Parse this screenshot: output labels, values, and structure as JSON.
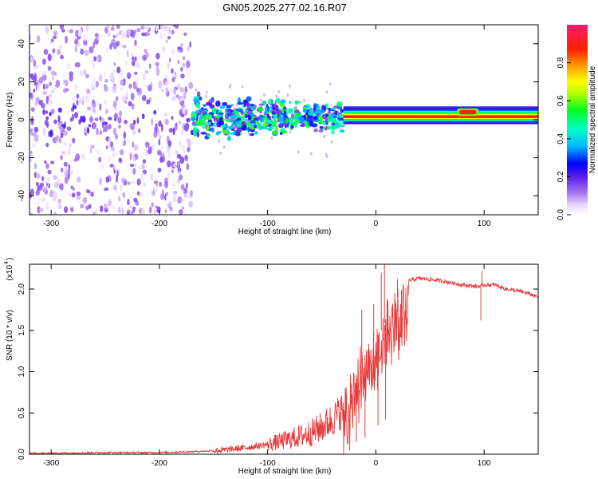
{
  "page_title": "GN05.2025.277.02.16.R07",
  "chart_data": [
    {
      "type": "heatmap",
      "title": "GN05.2025.277.02.16.R07",
      "xlabel": "Height of straight line (km)",
      "ylabel": "Frequency (Hz)",
      "xlim": [
        -320,
        150
      ],
      "ylim": [
        -50,
        50
      ],
      "x_ticks": [
        -300,
        -200,
        -100,
        0,
        100
      ],
      "x_tick_labels": [
        "-300",
        "-200",
        "-100",
        "0",
        "100"
      ],
      "y_ticks": [
        -40,
        -20,
        0,
        20,
        40
      ],
      "y_tick_labels": [
        "-40",
        "-20",
        "0",
        "20",
        "40"
      ],
      "colorbar": {
        "label": "Normalized spectral amplitude",
        "range": [
          0.0,
          1.0
        ],
        "ticks": [
          0.0,
          0.2,
          0.4,
          0.6,
          0.8
        ],
        "tick_labels": [
          "0.0",
          "0.2",
          "0.4",
          "0.6",
          "0.8"
        ]
      },
      "regions": [
        {
          "x_range": [
            -320,
            -170
          ],
          "freq_range": [
            -50,
            50
          ],
          "amplitude": 0.12,
          "description": "diffuse broadband noise"
        },
        {
          "x_range": [
            -170,
            -30
          ],
          "freq_range": [
            -12,
            14
          ],
          "amplitude": 0.35,
          "description": "scattered signal band"
        },
        {
          "x_range": [
            -30,
            150
          ],
          "freq_range": [
            -2,
            5
          ],
          "amplitude": 0.95,
          "description": "narrow strong line near 2 Hz"
        },
        {
          "x_range": [
            75,
            95
          ],
          "freq_range": [
            2,
            6
          ],
          "amplitude": 0.9,
          "description": "bump near 4 Hz"
        }
      ]
    },
    {
      "type": "line",
      "xlabel": "Height of straight line (km)",
      "ylabel": "SNR (10 * v/v)",
      "y_multiplier": "(x10",
      "y_multiplier_exponent": "4",
      "y_multiplier_close": ")",
      "xlim": [
        -320,
        150
      ],
      "ylim": [
        0.0,
        2.3
      ],
      "x_ticks": [
        -300,
        -200,
        -100,
        0,
        100
      ],
      "x_tick_labels": [
        "-300",
        "-200",
        "-100",
        "0",
        "100"
      ],
      "y_ticks": [
        0.0,
        0.5,
        1.0,
        1.5,
        2.0
      ],
      "y_tick_labels": [
        "0.0",
        "0.5",
        "1.0",
        "1.5",
        "2.0"
      ],
      "series": [
        {
          "name": "SNR",
          "color": "#e83a3a",
          "x": [
            -320,
            -250,
            -200,
            -170,
            -140,
            -120,
            -100,
            -80,
            -60,
            -50,
            -40,
            -30,
            -25,
            -20,
            -15,
            -10,
            -5,
            0,
            5,
            10,
            15,
            20,
            25,
            30,
            40,
            60,
            80,
            95,
            100,
            110,
            120,
            130,
            140,
            150
          ],
          "y": [
            0.01,
            0.02,
            0.02,
            0.03,
            0.05,
            0.08,
            0.12,
            0.18,
            0.26,
            0.33,
            0.42,
            0.55,
            0.75,
            0.9,
            1.05,
            1.2,
            1.3,
            1.4,
            1.5,
            1.65,
            1.75,
            1.9,
            2.0,
            2.1,
            2.13,
            2.1,
            2.05,
            2.03,
            2.05,
            2.05,
            2.0,
            1.98,
            1.95,
            1.9
          ]
        }
      ],
      "spikes": [
        {
          "x": -18,
          "y": 0.15
        },
        {
          "x": -13,
          "y": 1.75
        },
        {
          "x": -10,
          "y": 0.2
        },
        {
          "x": -2,
          "y": 1.82
        },
        {
          "x": 2,
          "y": 0.35
        },
        {
          "x": 5,
          "y": 2.2
        },
        {
          "x": 8,
          "y": 2.32
        },
        {
          "x": 9,
          "y": 0.42
        },
        {
          "x": 20,
          "y": 2.12
        },
        {
          "x": 97,
          "y": 1.62
        },
        {
          "x": 98,
          "y": 2.22
        }
      ]
    }
  ]
}
